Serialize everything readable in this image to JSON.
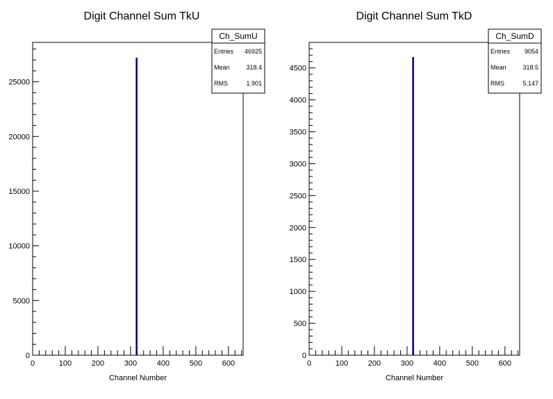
{
  "chart_data": [
    {
      "type": "bar",
      "title": "Digit Channel Sum TkU",
      "xlabel": "Channel Number",
      "ylabel": "",
      "xlim": [
        0,
        645
      ],
      "ylim": [
        0,
        28600
      ],
      "x_ticks": [
        0,
        100,
        200,
        300,
        400,
        500,
        600
      ],
      "y_ticks": [
        0,
        5000,
        10000,
        15000,
        20000,
        25000
      ],
      "bars": [
        {
          "x": 318,
          "value": 27200
        }
      ],
      "bar_color": "#000080",
      "legend": "top-right",
      "stats": {
        "name": "Ch_SumU",
        "rows": [
          {
            "label": "Entries",
            "value": "46925"
          },
          {
            "label": "Mean",
            "value": "318.4"
          },
          {
            "label": "RMS",
            "value": "1.901"
          }
        ]
      }
    },
    {
      "type": "bar",
      "title": "Digit Channel Sum TkD",
      "xlabel": "Channel Number",
      "ylabel": "",
      "xlim": [
        0,
        645
      ],
      "ylim": [
        0,
        4900
      ],
      "x_ticks": [
        0,
        100,
        200,
        300,
        400,
        500,
        600
      ],
      "y_ticks": [
        0,
        500,
        1000,
        1500,
        2000,
        2500,
        3000,
        3500,
        4000,
        4500
      ],
      "bars": [
        {
          "x": 318,
          "value": 4670
        }
      ],
      "bar_color": "#000080",
      "legend": "top-right",
      "stats": {
        "name": "Ch_SumD",
        "rows": [
          {
            "label": "Entries",
            "value": "9054"
          },
          {
            "label": "Mean",
            "value": "318.5"
          },
          {
            "label": "RMS",
            "value": "5.147"
          }
        ]
      }
    }
  ]
}
